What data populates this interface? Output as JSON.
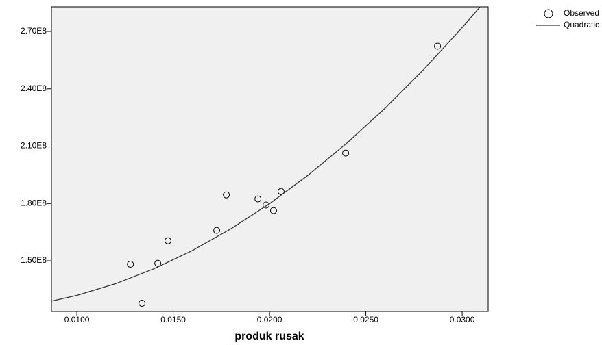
{
  "chart_data": {
    "type": "scatter",
    "x_label": "produk rusak",
    "xlim": [
      0.00868,
      0.03135
    ],
    "ylim": [
      123500000,
      282900000
    ],
    "xticks": [
      {
        "value": 0.01,
        "label": "0.0100"
      },
      {
        "value": 0.015,
        "label": "0.0150"
      },
      {
        "value": 0.02,
        "label": "0.0200"
      },
      {
        "value": 0.025,
        "label": "0.0250"
      },
      {
        "value": 0.03,
        "label": "0.0300"
      }
    ],
    "yticks": [
      {
        "value": 150000000,
        "label": "1.50E8"
      },
      {
        "value": 180000000,
        "label": "1.80E8"
      },
      {
        "value": 210000000,
        "label": "2.10E8"
      },
      {
        "value": 240000000,
        "label": "2.40E8"
      },
      {
        "value": 270000000,
        "label": "2.70E8"
      }
    ],
    "legend": "top-right",
    "series": [
      {
        "name": "Observed",
        "type": "scatter",
        "color": "#000000",
        "x": [
          0.01278,
          0.01338,
          0.0142,
          0.01473,
          0.01726,
          0.01776,
          0.0194,
          0.01982,
          0.02021,
          0.0206,
          0.02395,
          0.02872
        ],
        "values": [
          148200000,
          127800000,
          148700000,
          160500000,
          165900000,
          184500000,
          182400000,
          179200000,
          176300000,
          186300000,
          206400000,
          262300000
        ]
      },
      {
        "name": "Quadratic",
        "type": "line",
        "color": "#333333",
        "x": [
          0.00868,
          0.01,
          0.012,
          0.014,
          0.016,
          0.018,
          0.02,
          0.022,
          0.024,
          0.026,
          0.028,
          0.03,
          0.03093
        ],
        "values": [
          128900000,
          131930000,
          137990000,
          145820000,
          155410000,
          166770000,
          179900000,
          194800000,
          211460000,
          229890000,
          250090000,
          272050000,
          282900000
        ]
      }
    ]
  }
}
